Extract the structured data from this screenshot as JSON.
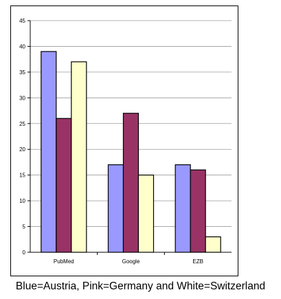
{
  "chart_data": {
    "type": "bar",
    "categories": [
      "PubMed",
      "Google",
      "EZB"
    ],
    "series": [
      {
        "values": [
          39,
          17,
          17
        ],
        "color": "#9999FF"
      },
      {
        "values": [
          26,
          27,
          16
        ],
        "color": "#993366"
      },
      {
        "values": [
          37,
          15,
          3
        ],
        "color": "#FFFFCC"
      }
    ],
    "ylim": [
      0,
      45
    ],
    "yticks": [
      0,
      5,
      10,
      15,
      20,
      25,
      30,
      35,
      40,
      45
    ],
    "grid": true,
    "legend": "none"
  },
  "caption": "Blue=Austria, Pink=Germany and White=Switzerland"
}
